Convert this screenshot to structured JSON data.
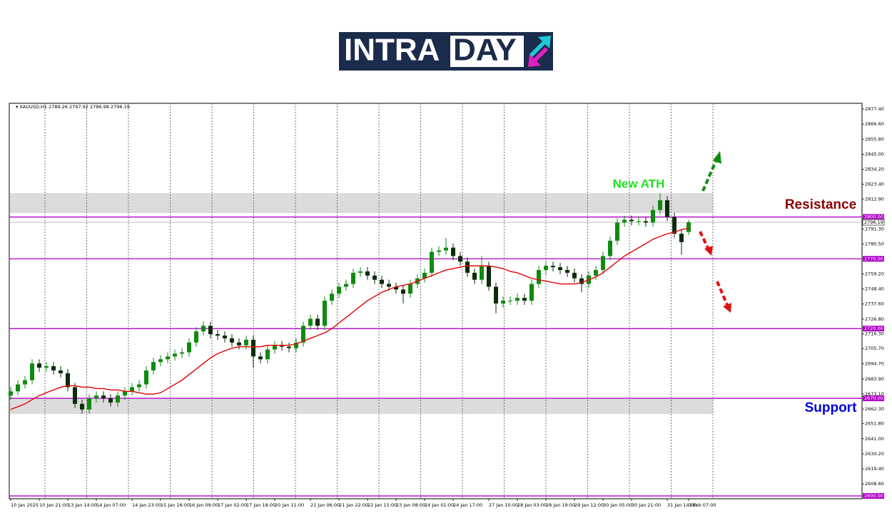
{
  "logo": {
    "left": "INTRA",
    "right": "DAY"
  },
  "chart_data": {
    "type": "candlestick",
    "symbol": "XAUUSD,H1",
    "categories": [
      "10 Jan 2025",
      null,
      null,
      null,
      "10 Jan 21:00",
      null,
      null,
      null,
      "13 Jan 14:00",
      null,
      null,
      null,
      "14 Jan 07:00",
      null,
      null,
      null,
      null,
      "14 Jan 23:00",
      null,
      null,
      null,
      "15 Jan 16:00",
      null,
      null,
      null,
      "16 Jan 09:00",
      null,
      null,
      null,
      "17 Jan 02:00",
      null,
      null,
      null,
      "17 Jan 18:00",
      null,
      null,
      null,
      "20 Jan 11:00",
      null,
      null,
      null,
      null,
      "21 Jan 06:00",
      null,
      null,
      null,
      "21 Jan 22:00",
      null,
      null,
      null,
      "22 Jan 15:00",
      null,
      null,
      null,
      "23 Jan 08:00",
      null,
      null,
      null,
      "24 Jan 01:00",
      null,
      null,
      null,
      "24 Jan 17:00",
      null,
      null,
      null,
      null,
      "27 Jan 10:00",
      null,
      null,
      null,
      "28 Jan 03:00",
      null,
      null,
      null,
      "28 Jan 19:00",
      null,
      null,
      null,
      "29 Jan 12:00",
      null,
      null,
      null,
      "30 Jan 05:00",
      null,
      null,
      null,
      "30 Jan 21:00",
      null,
      null,
      null,
      null,
      "31 Jan 14:00",
      null,
      null,
      "3 Feb 07:00"
    ],
    "open": [
      2672,
      2675,
      2680,
      2683,
      2695,
      2692,
      2693,
      2690,
      2688,
      2678,
      2666,
      2662,
      2670,
      2672,
      2670,
      2667,
      2672,
      2675,
      2678,
      2680,
      2690,
      2696,
      2698,
      2700,
      2702,
      2703,
      2710,
      2718,
      2722,
      2716,
      2715,
      2713,
      2710,
      2708,
      2712,
      2700,
      2698,
      2705,
      2708,
      2707,
      2706,
      2710,
      2722,
      2727,
      2722,
      2740,
      2745,
      2750,
      2752,
      2760,
      2761,
      2758,
      2755,
      2752,
      2750,
      2748,
      2745,
      2752,
      2756,
      2760,
      2775,
      2776,
      2778,
      2772,
      2768,
      2760,
      2755,
      2765,
      2750,
      2738,
      2740,
      2740,
      2742,
      2740,
      2752,
      2762,
      2765,
      2764,
      2762,
      2760,
      2756,
      2752,
      2758,
      2762,
      2772,
      2783,
      2796,
      2798,
      2797,
      2797,
      2796,
      2805,
      2812,
      2800,
      2788,
      2789.26
    ],
    "high": [
      2678,
      2683,
      2686,
      2698,
      2698,
      2696,
      2696,
      2693,
      2691,
      2681,
      2669,
      2673,
      2675,
      2675,
      2673,
      2675,
      2678,
      2681,
      2683,
      2693,
      2699,
      2701,
      2703,
      2705,
      2706,
      2713,
      2721,
      2725,
      2725,
      2719,
      2718,
      2716,
      2713,
      2715,
      2715,
      2703,
      2708,
      2711,
      2711,
      2710,
      2713,
      2725,
      2730,
      2730,
      2743,
      2748,
      2753,
      2755,
      2763,
      2764,
      2764,
      2761,
      2758,
      2755,
      2753,
      2751,
      2755,
      2759,
      2763,
      2778,
      2779,
      2785,
      2781,
      2775,
      2771,
      2763,
      2772,
      2768,
      2753,
      2743,
      2743,
      2745,
      2745,
      2755,
      2765,
      2768,
      2768,
      2767,
      2765,
      2763,
      2759,
      2761,
      2765,
      2775,
      2786,
      2799,
      2801,
      2801,
      2800,
      2800,
      2808,
      2817,
      2815,
      2803,
      2791,
      2797.92
    ],
    "low": [
      2669,
      2672,
      2677,
      2680,
      2689,
      2689,
      2687,
      2685,
      2675,
      2663,
      2659,
      2659,
      2667,
      2667,
      2664,
      2664,
      2669,
      2672,
      2675,
      2677,
      2687,
      2693,
      2695,
      2697,
      2699,
      2700,
      2707,
      2715,
      2713,
      2712,
      2710,
      2707,
      2705,
      2705,
      2692,
      2695,
      2695,
      2702,
      2704,
      2703,
      2703,
      2707,
      2719,
      2719,
      2719,
      2737,
      2742,
      2747,
      2749,
      2757,
      2755,
      2752,
      2749,
      2747,
      2745,
      2738,
      2742,
      2749,
      2753,
      2757,
      2772,
      2773,
      2769,
      2765,
      2757,
      2752,
      2752,
      2747,
      2731,
      2735,
      2737,
      2737,
      2737,
      2737,
      2749,
      2759,
      2761,
      2759,
      2757,
      2753,
      2746,
      2749,
      2755,
      2759,
      2769,
      2780,
      2793,
      2794,
      2794,
      2793,
      2793,
      2802,
      2797,
      2785,
      2773,
      2786.98
    ],
    "close": [
      2675,
      2680,
      2683,
      2695,
      2692,
      2693,
      2690,
      2688,
      2678,
      2666,
      2662,
      2670,
      2672,
      2670,
      2667,
      2672,
      2675,
      2678,
      2680,
      2690,
      2696,
      2698,
      2700,
      2702,
      2703,
      2710,
      2718,
      2722,
      2716,
      2715,
      2713,
      2710,
      2708,
      2712,
      2700,
      2698,
      2705,
      2708,
      2707,
      2706,
      2710,
      2722,
      2727,
      2722,
      2740,
      2745,
      2750,
      2752,
      2760,
      2761,
      2758,
      2755,
      2752,
      2750,
      2748,
      2745,
      2752,
      2756,
      2760,
      2775,
      2776,
      2778,
      2772,
      2768,
      2760,
      2755,
      2765,
      2750,
      2738,
      2740,
      2740,
      2742,
      2740,
      2752,
      2762,
      2765,
      2764,
      2762,
      2760,
      2756,
      2752,
      2758,
      2762,
      2772,
      2783,
      2796,
      2798,
      2797,
      2797,
      2796,
      2805,
      2812,
      2800,
      2788,
      2782,
      2796.19
    ],
    "up_color": "#0f8a0f",
    "down_color": "#0b2b0b",
    "moving_average": {
      "color": "#e01010",
      "values": [
        2662,
        2664,
        2666,
        2669,
        2672,
        2674,
        2676,
        2678,
        2679,
        2679,
        2678,
        2678,
        2677,
        2677,
        2676,
        2676,
        2675,
        2675,
        2674,
        2673,
        2673,
        2674,
        2677,
        2680,
        2683,
        2687,
        2691,
        2695,
        2699,
        2702,
        2704,
        2706,
        2707,
        2707,
        2707,
        2707,
        2708,
        2708,
        2708,
        2708,
        2709,
        2711,
        2713,
        2715,
        2717,
        2720,
        2724,
        2728,
        2732,
        2736,
        2740,
        2743,
        2746,
        2748,
        2750,
        2751,
        2752,
        2754,
        2756,
        2758,
        2760,
        2762,
        2763,
        2764,
        2765,
        2765,
        2765,
        2765,
        2764,
        2763,
        2761,
        2760,
        2758,
        2756,
        2755,
        2754,
        2753,
        2752,
        2752,
        2752,
        2753,
        2755,
        2757,
        2760,
        2764,
        2768,
        2772,
        2775,
        2778,
        2781,
        2784,
        2786,
        2788,
        2789,
        2791,
        2792
      ]
    },
    "ylim": [
      2598.0,
      2881.5
    ],
    "yticks": [
      {
        "value": 2877.4,
        "label": "2877.40"
      },
      {
        "value": 2866.6,
        "label": "2866.60"
      },
      {
        "value": 2855.8,
        "label": "2855.80"
      },
      {
        "value": 2845.0,
        "label": "2845.00"
      },
      {
        "value": 2834.2,
        "label": "2834.20"
      },
      {
        "value": 2823.4,
        "label": "2823.40"
      },
      {
        "value": 2812.9,
        "label": "2812.90"
      },
      {
        "value": 2791.3,
        "label": "2791.30"
      },
      {
        "value": 2780.5,
        "label": "2780.50"
      },
      {
        "value": 2759.2,
        "label": "2759.20"
      },
      {
        "value": 2748.4,
        "label": "2748.40"
      },
      {
        "value": 2737.6,
        "label": "2737.60"
      },
      {
        "value": 2726.8,
        "label": "2726.80"
      },
      {
        "value": 2716.3,
        "label": "2716.30"
      },
      {
        "value": 2705.7,
        "label": "2705.70"
      },
      {
        "value": 2694.7,
        "label": "2694.70"
      },
      {
        "value": 2683.9,
        "label": "2683.90"
      },
      {
        "value": 2673.1,
        "label": "2673.10"
      },
      {
        "value": 2662.3,
        "label": "2662.30"
      },
      {
        "value": 2651.8,
        "label": "2651.80"
      },
      {
        "value": 2641.0,
        "label": "2641.00"
      },
      {
        "value": 2630.2,
        "label": "2630.20"
      },
      {
        "value": 2619.4,
        "label": "2619.40"
      },
      {
        "value": 2608.6,
        "label": "2608.60"
      }
    ],
    "levels": [
      {
        "value": 2800,
        "label": "2800.00"
      },
      {
        "value": 2770,
        "label": "2770.00"
      },
      {
        "value": 2720,
        "label": "2720.00"
      },
      {
        "value": 2670,
        "label": "2670.00"
      },
      {
        "value": 2600,
        "label": "2600.00"
      }
    ],
    "level_color": "#b000c8",
    "zones": [
      {
        "from": 2802.8,
        "to": 2817.1
      },
      {
        "from": 2658.8,
        "to": 2669.5
      }
    ],
    "annotations": [
      {
        "text": "New ATH",
        "color": "#22e022"
      },
      {
        "text": "Resistance",
        "color": "#8b0000"
      },
      {
        "text": "Support",
        "color": "#0000e0"
      }
    ]
  }
}
